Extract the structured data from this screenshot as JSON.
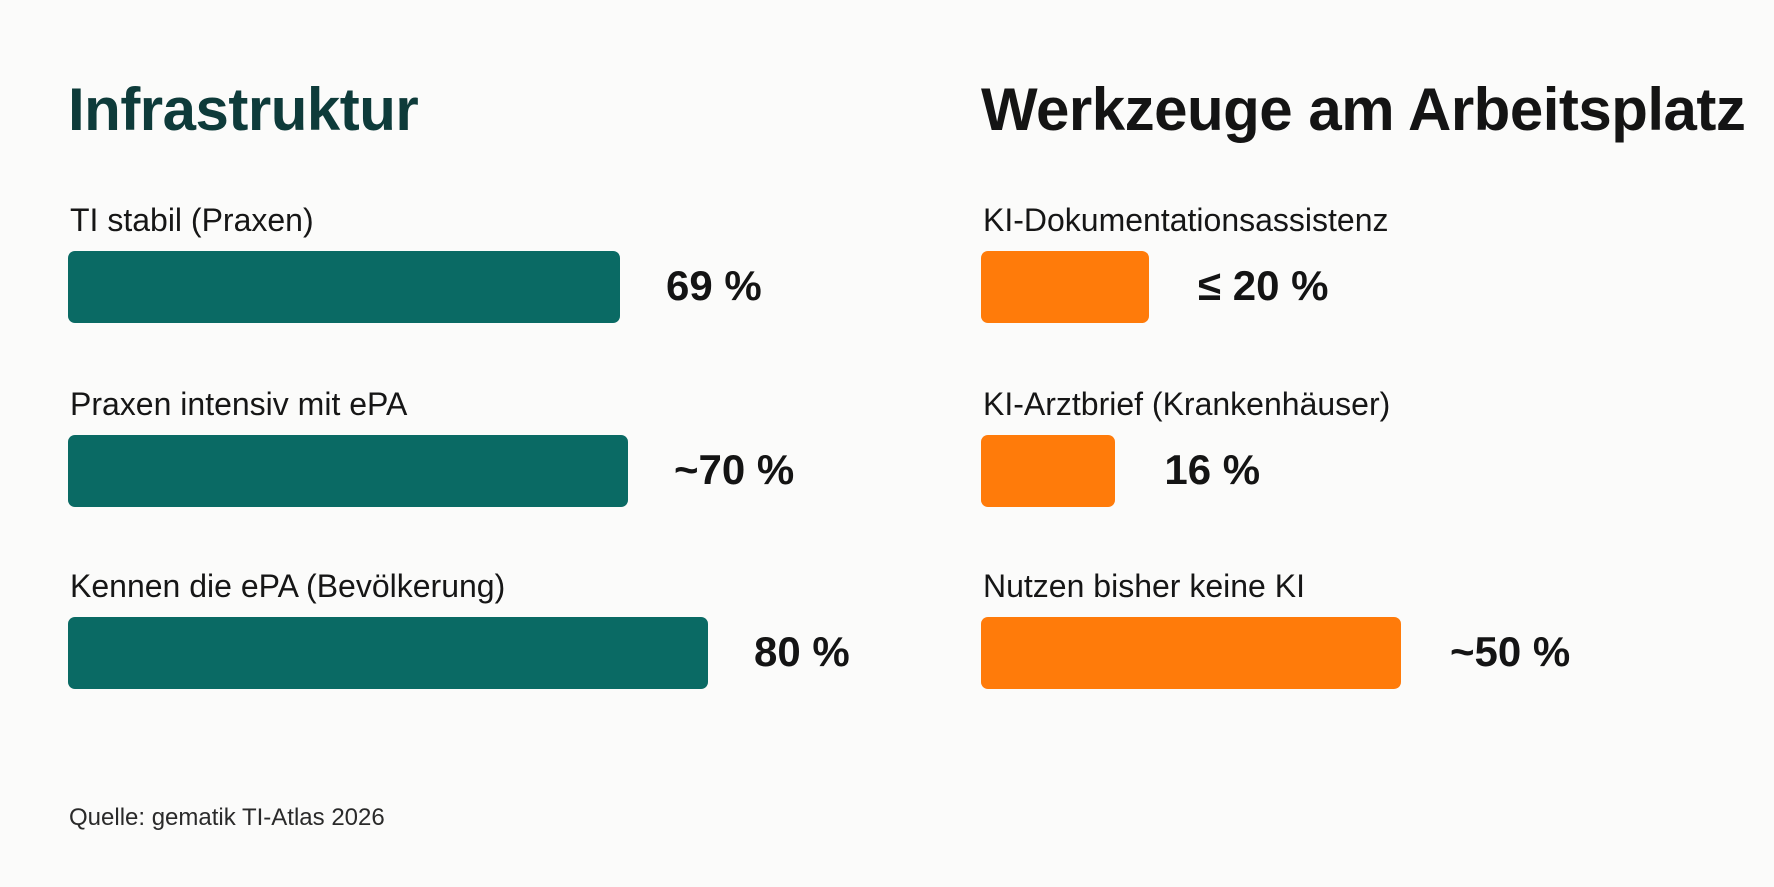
{
  "chart_data": [
    {
      "type": "bar",
      "orientation": "horizontal",
      "title": "Infrastruktur",
      "color": "#0a6a64",
      "categories": [
        "TI stabil (Praxen)",
        "Praxen intensiv mit ePA",
        "Kennen die ePA (Bevölkerung)"
      ],
      "values": [
        69,
        70,
        80
      ],
      "value_labels": [
        "69 %",
        "~70 %",
        "80 %"
      ],
      "xlim": [
        0,
        100
      ]
    },
    {
      "type": "bar",
      "orientation": "horizontal",
      "title": "Werkzeuge am Arbeitsplatz",
      "color": "#ff7b0a",
      "categories": [
        "KI-Dokumentationsassistenz",
        "KI-Arztbrief (Krankenhäuser)",
        "Nutzen bisher keine KI"
      ],
      "values": [
        20,
        16,
        50
      ],
      "value_labels": [
        "≤ 20 %",
        "16 %",
        "~50 %"
      ],
      "xlim": [
        0,
        100
      ]
    }
  ],
  "source": "Quelle: gematik TI-Atlas 2026"
}
